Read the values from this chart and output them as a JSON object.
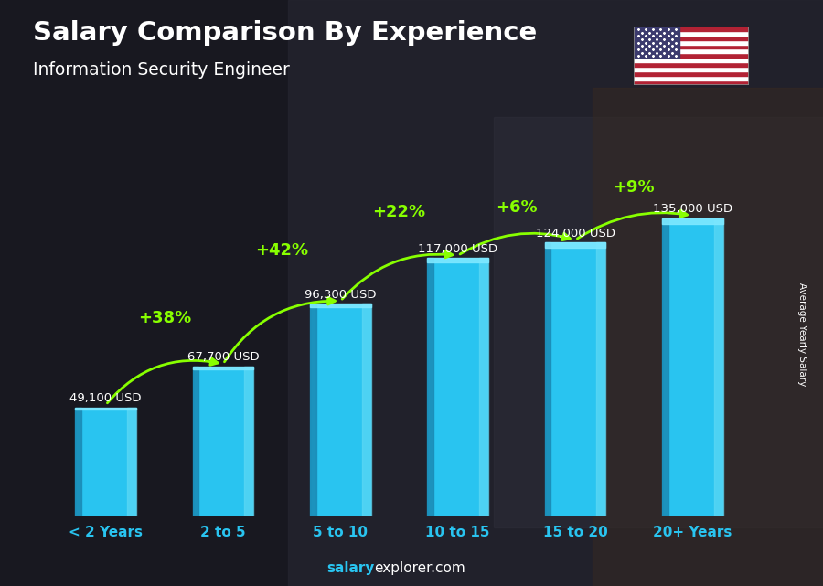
{
  "title": "Salary Comparison By Experience",
  "subtitle": "Information Security Engineer",
  "categories": [
    "< 2 Years",
    "2 to 5",
    "5 to 10",
    "10 to 15",
    "15 to 20",
    "20+ Years"
  ],
  "values": [
    49100,
    67700,
    96300,
    117000,
    124000,
    135000
  ],
  "value_labels": [
    "49,100 USD",
    "67,700 USD",
    "96,300 USD",
    "117,000 USD",
    "124,000 USD",
    "135,000 USD"
  ],
  "pct_changes": [
    "+38%",
    "+42%",
    "+22%",
    "+6%",
    "+9%"
  ],
  "bar_face_color": "#29C4F0",
  "bar_left_color": "#1A8AB5",
  "bar_right_color": "#5DD8F5",
  "bar_top_color": "#7EE8FF",
  "bg_color": "#1C1C2A",
  "title_color": "#FFFFFF",
  "subtitle_color": "#FFFFFF",
  "value_label_color": "#FFFFFF",
  "pct_color": "#88FF00",
  "xticklabel_color": "#29C4F0",
  "ylabel_text": "Average Yearly Salary",
  "watermark_bold": "salary",
  "watermark_rest": "explorer.com",
  "ylim_max": 165000,
  "fig_width": 9.0,
  "fig_height": 6.41,
  "bar_width": 0.52,
  "arc_offsets": [
    0.3,
    0.28,
    0.26,
    0.22,
    0.2
  ],
  "arc_pct_y_offsets": [
    18000,
    20000,
    17000,
    12000,
    10000
  ]
}
